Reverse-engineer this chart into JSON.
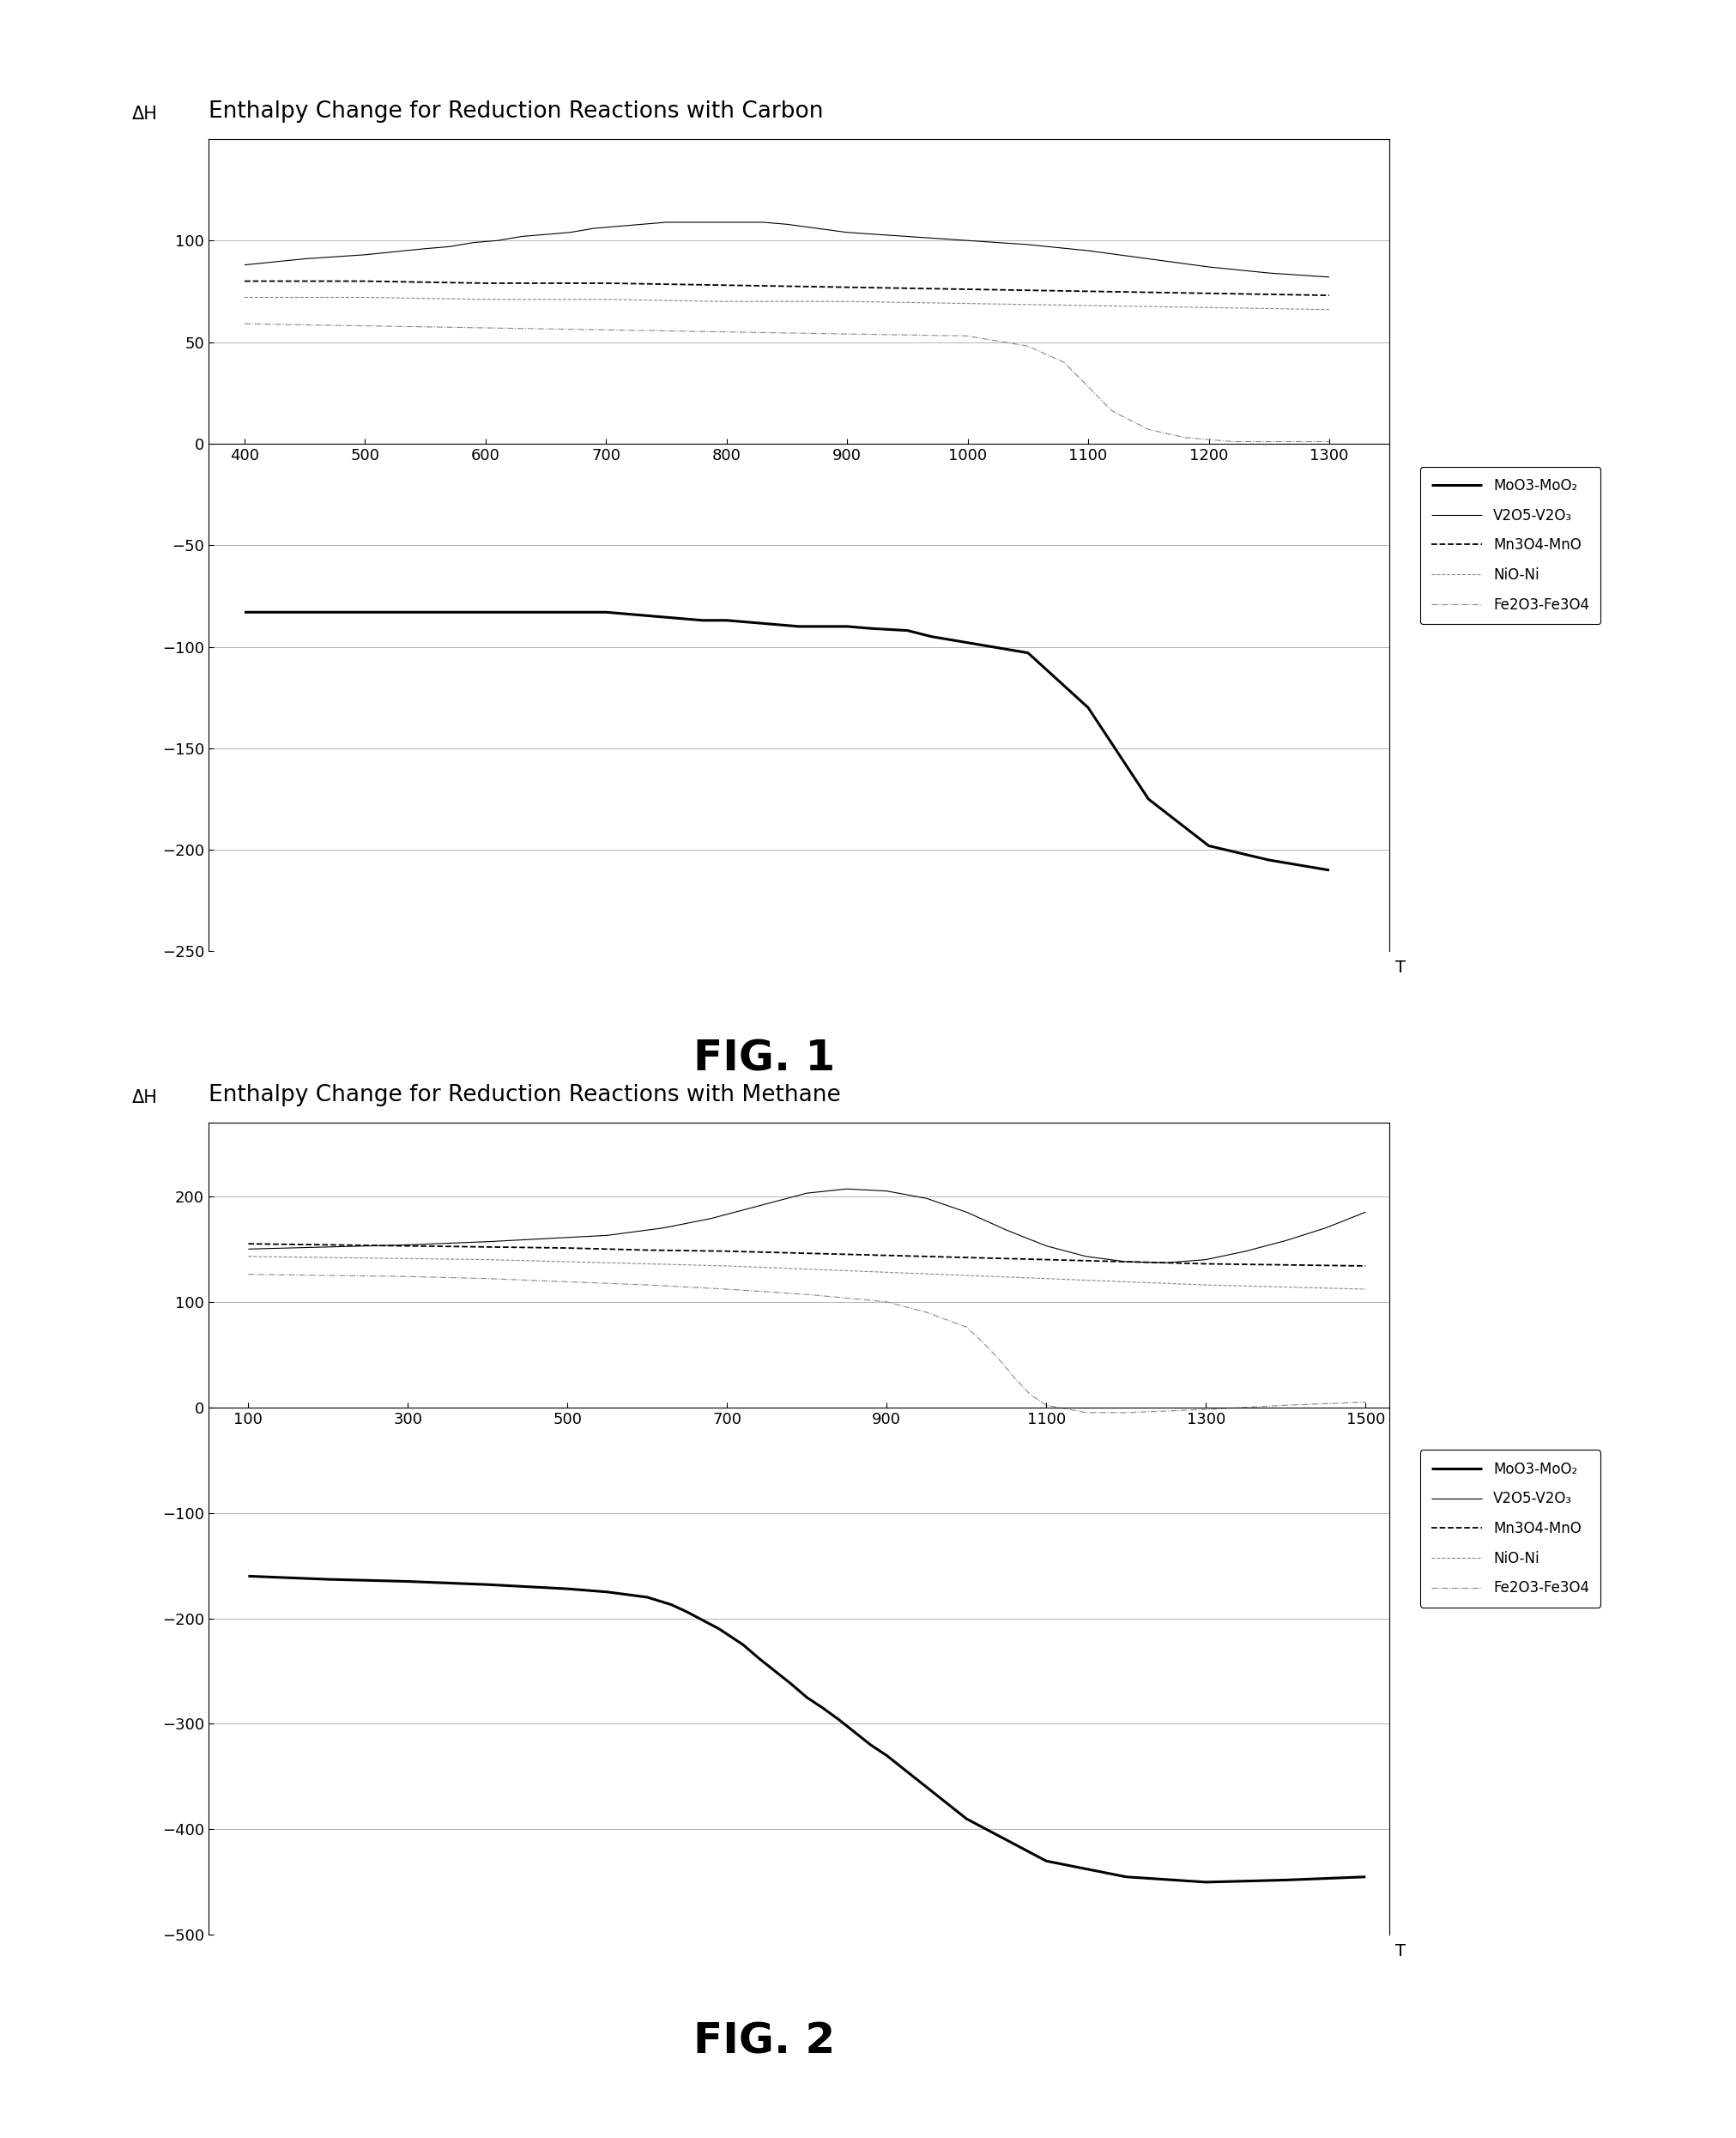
{
  "fig1": {
    "title": "Enthalpy Change for Reduction Reactions with Carbon",
    "ylabel": "ΔH",
    "xlabel": "T",
    "xlim": [
      370,
      1350
    ],
    "ylim": [
      -250,
      150
    ],
    "yticks": [
      -250,
      -200,
      -150,
      -100,
      -50,
      0,
      50,
      100
    ],
    "xticks": [
      400,
      500,
      600,
      700,
      800,
      900,
      1000,
      1100,
      1200,
      1300
    ],
    "MoO3_x": [
      400,
      500,
      550,
      600,
      650,
      700,
      720,
      740,
      760,
      780,
      800,
      820,
      840,
      860,
      880,
      900,
      920,
      950,
      970,
      1000,
      1050,
      1100,
      1150,
      1200,
      1250,
      1300
    ],
    "MoO3_y": [
      -83,
      -83,
      -83,
      -83,
      -83,
      -83,
      -84,
      -85,
      -86,
      -87,
      -87,
      -88,
      -89,
      -90,
      -90,
      -90,
      -91,
      -92,
      -95,
      -98,
      -103,
      -130,
      -175,
      -198,
      -205,
      -210
    ],
    "V2O5_x": [
      400,
      450,
      500,
      550,
      570,
      590,
      610,
      630,
      650,
      670,
      690,
      710,
      730,
      750,
      770,
      790,
      810,
      830,
      850,
      900,
      950,
      1000,
      1050,
      1100,
      1150,
      1200,
      1250,
      1300
    ],
    "V2O5_y": [
      88,
      91,
      93,
      96,
      97,
      99,
      100,
      102,
      103,
      104,
      106,
      107,
      108,
      109,
      109,
      109,
      109,
      109,
      108,
      104,
      102,
      100,
      98,
      95,
      91,
      87,
      84,
      82
    ],
    "Mn3O4_x": [
      400,
      500,
      600,
      700,
      800,
      900,
      1000,
      1100,
      1200,
      1300
    ],
    "Mn3O4_y": [
      80,
      80,
      79,
      79,
      78,
      77,
      76,
      75,
      74,
      73
    ],
    "NiO_x": [
      400,
      500,
      600,
      700,
      800,
      900,
      1000,
      1100,
      1200,
      1300
    ],
    "NiO_y": [
      72,
      72,
      71,
      71,
      70,
      70,
      69,
      68,
      67,
      66
    ],
    "Fe2O3_x": [
      400,
      500,
      600,
      700,
      800,
      900,
      1000,
      1050,
      1080,
      1100,
      1120,
      1150,
      1180,
      1200,
      1220,
      1250,
      1280,
      1300
    ],
    "Fe2O3_y": [
      59,
      58,
      57,
      56,
      55,
      54,
      53,
      48,
      40,
      28,
      16,
      7,
      3,
      2,
      1,
      1,
      1,
      1
    ],
    "fig_label": "FIG. 1"
  },
  "fig2": {
    "title": "Enthalpy Change for Reduction Reactions with Methane",
    "ylabel": "ΔH",
    "xlabel": "T",
    "xlim": [
      50,
      1530
    ],
    "ylim": [
      -500,
      270
    ],
    "yticks": [
      -500,
      -400,
      -300,
      -200,
      -100,
      0,
      100,
      200
    ],
    "xticks": [
      100,
      300,
      500,
      700,
      900,
      1100,
      1300,
      1500
    ],
    "MoO3_x": [
      100,
      200,
      300,
      400,
      500,
      550,
      600,
      630,
      650,
      670,
      690,
      700,
      720,
      740,
      760,
      780,
      800,
      820,
      840,
      860,
      880,
      900,
      950,
      1000,
      1100,
      1200,
      1300,
      1400,
      1500
    ],
    "MoO3_y": [
      -160,
      -163,
      -165,
      -168,
      -172,
      -175,
      -180,
      -187,
      -194,
      -202,
      -210,
      -215,
      -225,
      -238,
      -250,
      -262,
      -275,
      -285,
      -296,
      -308,
      -320,
      -330,
      -360,
      -390,
      -430,
      -445,
      -450,
      -448,
      -445
    ],
    "V2O5_x": [
      100,
      200,
      300,
      400,
      500,
      550,
      580,
      600,
      620,
      640,
      660,
      680,
      700,
      720,
      740,
      760,
      780,
      800,
      850,
      900,
      950,
      1000,
      1050,
      1100,
      1150,
      1200,
      1250,
      1300,
      1350,
      1400,
      1450,
      1500
    ],
    "V2O5_y": [
      150,
      152,
      154,
      157,
      161,
      163,
      166,
      168,
      170,
      173,
      176,
      179,
      183,
      187,
      191,
      195,
      199,
      203,
      207,
      205,
      198,
      185,
      168,
      153,
      143,
      138,
      137,
      140,
      148,
      158,
      170,
      185
    ],
    "Mn3O4_x": [
      100,
      200,
      300,
      400,
      500,
      600,
      700,
      800,
      900,
      1000,
      1100,
      1200,
      1300,
      1400,
      1500
    ],
    "Mn3O4_y": [
      155,
      154,
      153,
      152,
      151,
      149,
      148,
      146,
      144,
      142,
      140,
      138,
      136,
      135,
      134
    ],
    "NiO_x": [
      100,
      200,
      300,
      400,
      500,
      600,
      700,
      800,
      900,
      1000,
      1100,
      1200,
      1300,
      1400,
      1500
    ],
    "NiO_y": [
      143,
      142,
      141,
      140,
      138,
      136,
      134,
      131,
      128,
      125,
      122,
      119,
      116,
      114,
      112
    ],
    "Fe2O3_x": [
      100,
      200,
      300,
      400,
      500,
      600,
      700,
      800,
      900,
      950,
      1000,
      1020,
      1040,
      1060,
      1080,
      1100,
      1150,
      1200,
      1300,
      1400,
      1500
    ],
    "Fe2O3_y": [
      126,
      125,
      124,
      122,
      119,
      116,
      112,
      107,
      100,
      90,
      76,
      62,
      46,
      28,
      12,
      2,
      -5,
      -5,
      -2,
      2,
      5
    ],
    "fig_label": "FIG. 2"
  },
  "legend_labels": [
    "MoO3-MoO₂",
    "V2O5-V2O₃",
    "Mn3O4-MnO",
    "NiO-Ni",
    "Fe2O3-Fe3O4"
  ]
}
